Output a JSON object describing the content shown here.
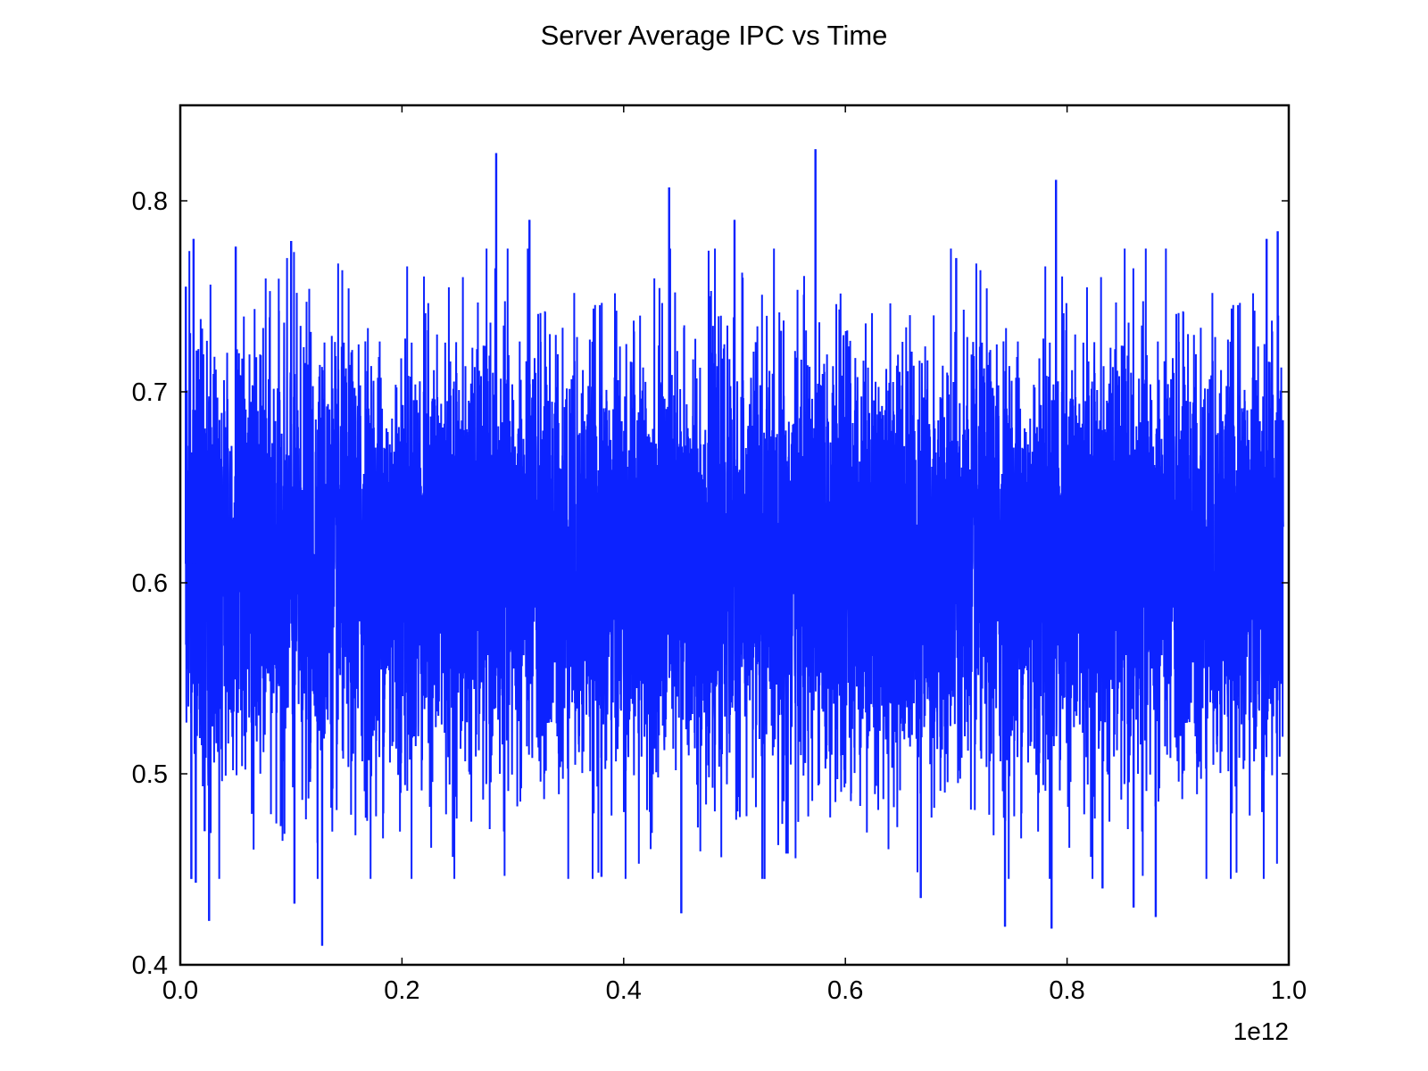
{
  "chart_data": {
    "type": "line",
    "title": "Server Average IPC vs Time",
    "xlabel": "",
    "ylabel": "",
    "x_scale_label": "1e12",
    "xlim": [
      0.0,
      1.0
    ],
    "ylim": [
      0.4,
      0.85
    ],
    "x_ticks": [
      0.0,
      0.2,
      0.4,
      0.6,
      0.8,
      1.0
    ],
    "x_tick_labels": [
      "0.0",
      "0.2",
      "0.4",
      "0.6",
      "0.8",
      "1.0"
    ],
    "y_ticks": [
      0.4,
      0.5,
      0.6,
      0.7,
      0.8
    ],
    "y_tick_labels": [
      "0.4",
      "0.5",
      "0.6",
      "0.7",
      "0.8"
    ],
    "grid": false,
    "legend": "none",
    "series": [
      {
        "color": "#0c22ff",
        "x_range": [
          0.005,
          0.995
        ],
        "mean": 0.61,
        "noise_sd": 0.055,
        "x": [
          0.005,
          0.01,
          0.012,
          0.014,
          0.022,
          0.026,
          0.05,
          0.1,
          0.103,
          0.128,
          0.285,
          0.315,
          0.38,
          0.441,
          0.452,
          0.5,
          0.527,
          0.573,
          0.668,
          0.7,
          0.744,
          0.786,
          0.79,
          0.832,
          0.86,
          0.88,
          0.98,
          0.99
        ],
        "values": [
          0.755,
          0.445,
          0.78,
          0.443,
          0.47,
          0.423,
          0.776,
          0.779,
          0.432,
          0.41,
          0.825,
          0.79,
          0.446,
          0.807,
          0.427,
          0.79,
          0.445,
          0.827,
          0.435,
          0.77,
          0.42,
          0.419,
          0.811,
          0.44,
          0.43,
          0.425,
          0.78,
          0.784
        ]
      }
    ]
  }
}
